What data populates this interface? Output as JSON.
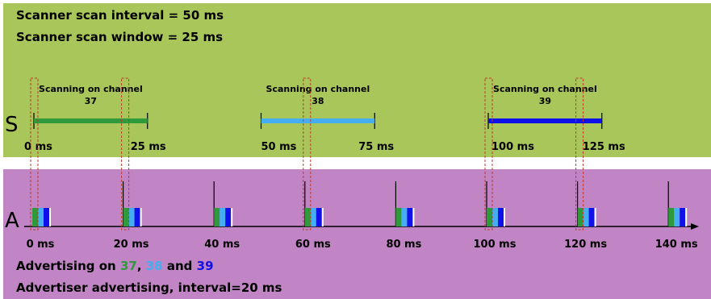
{
  "scanner": {
    "line1": "Scanner scan interval = 50 ms",
    "line2": "Scanner scan window = 25 ms",
    "row_label": "S",
    "windows": [
      {
        "label_line1": "Scanning on channel",
        "label_line2": "37",
        "channel": 37,
        "start_ms": 0,
        "end_ms": 25
      },
      {
        "label_line1": "Scanning on channel",
        "label_line2": "38",
        "channel": 38,
        "start_ms": 50,
        "end_ms": 75
      },
      {
        "label_line1": "Scanning on channel",
        "label_line2": "39",
        "channel": 39,
        "start_ms": 100,
        "end_ms": 125
      }
    ],
    "time_labels": [
      {
        "text": "0 ms",
        "ms": 0
      },
      {
        "text": "25 ms",
        "ms": 25
      },
      {
        "text": "50 ms",
        "ms": 50
      },
      {
        "text": "75 ms",
        "ms": 75
      },
      {
        "text": "100 ms",
        "ms": 100
      },
      {
        "text": "125 ms",
        "ms": 125
      }
    ]
  },
  "advertiser": {
    "row_label": "A",
    "ticks": [
      {
        "text": "0 ms",
        "ms": 0
      },
      {
        "text": "20 ms",
        "ms": 20
      },
      {
        "text": "40 ms",
        "ms": 40
      },
      {
        "text": "60 ms",
        "ms": 60
      },
      {
        "text": "80 ms",
        "ms": 80
      },
      {
        "text": "100 ms",
        "ms": 100
      },
      {
        "text": "120 ms",
        "ms": 120
      },
      {
        "text": "140 ms",
        "ms": 140
      }
    ],
    "caption_prefix": "Advertising on",
    "caption_ch37": "37",
    "caption_comma": ",",
    "caption_ch38": "38",
    "caption_and": "and",
    "caption_ch39": "39",
    "footer": "Advertiser advertising, interval=20 ms"
  },
  "colors": {
    "scanner_bg": "#a8c65a",
    "advertiser_bg": "#c184c4",
    "ch37": "#2e9a3c",
    "ch38": "#44aef0",
    "ch39": "#1010e8",
    "highlight": "#c0392b"
  }
}
